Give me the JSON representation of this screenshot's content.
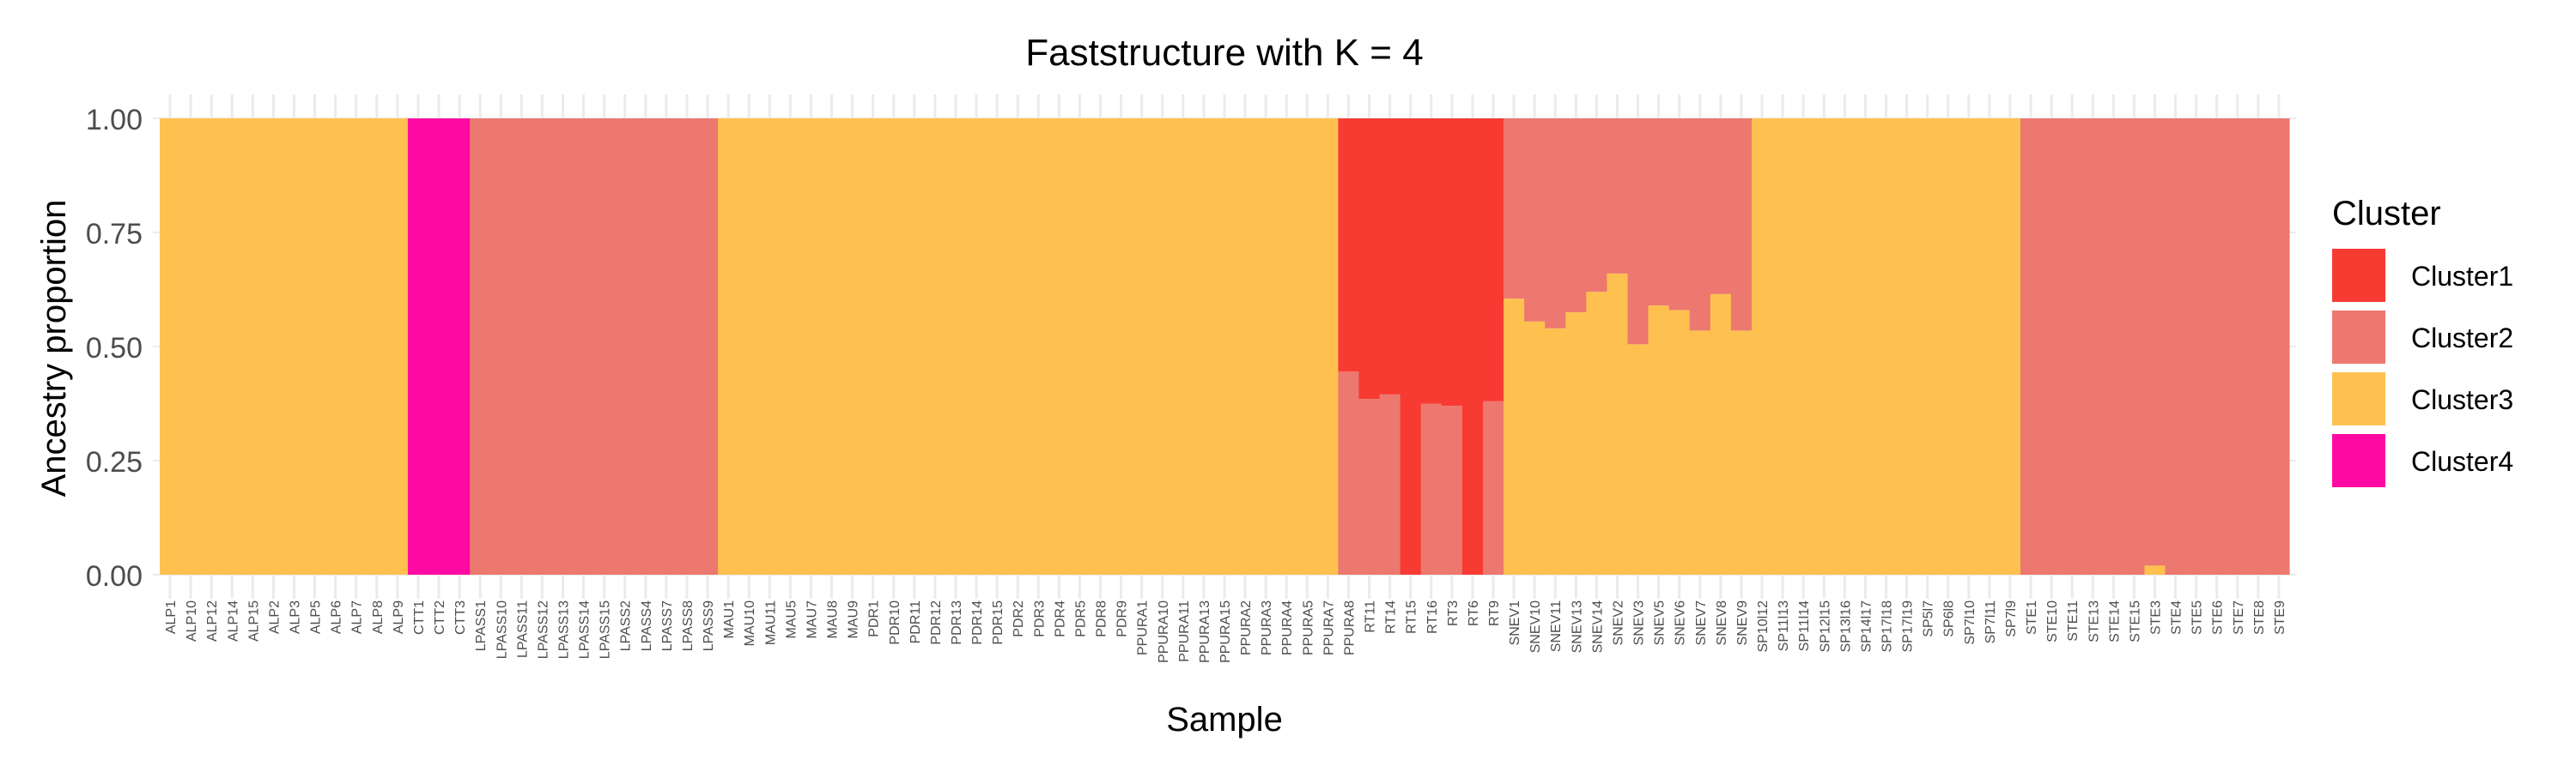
{
  "chart_data": {
    "type": "bar",
    "stacked": true,
    "title": "Faststructure with K = 4",
    "xlabel": "Sample",
    "ylabel": "Ancestry proportion",
    "ylim": [
      0,
      1
    ],
    "yticks": [
      "0.00",
      "0.25",
      "0.50",
      "0.75",
      "1.00"
    ],
    "grid": true,
    "legend": {
      "title": "Cluster",
      "position": "right"
    },
    "colors": {
      "Cluster1": "#f73b33",
      "Cluster2": "#ec786f",
      "Cluster3": "#fec150",
      "Cluster4": "#ff0aa3"
    },
    "categories": [
      "ALP1",
      "ALP10",
      "ALP12",
      "ALP14",
      "ALP15",
      "ALP2",
      "ALP3",
      "ALP5",
      "ALP6",
      "ALP7",
      "ALP8",
      "ALP9",
      "CTT1",
      "CTT2",
      "CTT3",
      "LPASS1",
      "LPASS10",
      "LPASS11",
      "LPASS12",
      "LPASS13",
      "LPASS14",
      "LPASS15",
      "LPASS2",
      "LPASS4",
      "LPASS7",
      "LPASS8",
      "LPASS9",
      "MAU1",
      "MAU10",
      "MAU11",
      "MAU5",
      "MAU7",
      "MAU8",
      "MAU9",
      "PDR1",
      "PDR10",
      "PDR11",
      "PDR12",
      "PDR13",
      "PDR14",
      "PDR15",
      "PDR2",
      "PDR3",
      "PDR4",
      "PDR5",
      "PDR8",
      "PDR9",
      "PPURA1",
      "PPURA10",
      "PPURA11",
      "PPURA13",
      "PPURA15",
      "PPURA2",
      "PPURA3",
      "PPURA4",
      "PPURA5",
      "PPURA7",
      "PPURA8",
      "RT11",
      "RT14",
      "RT15",
      "RT16",
      "RT3",
      "RT6",
      "RT9",
      "SNEV1",
      "SNEV10",
      "SNEV11",
      "SNEV13",
      "SNEV14",
      "SNEV2",
      "SNEV3",
      "SNEV5",
      "SNEV6",
      "SNEV7",
      "SNEV8",
      "SNEV9",
      "SP10l12",
      "SP11l13",
      "SP11l14",
      "SP12l15",
      "SP13l16",
      "SP14l17",
      "SP17l18",
      "SP17l19",
      "SP5l7",
      "SP6l8",
      "SP7l10",
      "SP7l11",
      "SP7l9",
      "STE1",
      "STE10",
      "STE11",
      "STE13",
      "STE14",
      "STE15",
      "STE3",
      "STE4",
      "STE5",
      "STE6",
      "STE7",
      "STE8",
      "STE9"
    ],
    "series": [
      {
        "name": "Cluster1",
        "values": [
          0,
          0,
          0,
          0,
          0,
          0,
          0,
          0,
          0,
          0,
          0,
          0,
          0,
          0,
          0,
          0,
          0,
          0,
          0,
          0,
          0,
          0,
          0,
          0,
          0,
          0,
          0,
          0,
          0,
          0,
          0,
          0,
          0,
          0,
          0,
          0,
          0,
          0,
          0,
          0,
          0,
          0,
          0,
          0,
          0,
          0,
          0,
          0,
          0,
          0,
          0,
          0,
          0,
          0,
          0,
          0,
          0,
          0.555,
          0.615,
          0.605,
          1,
          0.625,
          0.63,
          1,
          0.62,
          0,
          0,
          0,
          0,
          0,
          0,
          0,
          0,
          0,
          0,
          0,
          0,
          0,
          0,
          0,
          0,
          0,
          0,
          0,
          0,
          0,
          0,
          0,
          0,
          0,
          0,
          0,
          0,
          0,
          0,
          0,
          0,
          0,
          0,
          0,
          0,
          0,
          0
        ]
      },
      {
        "name": "Cluster2",
        "values": [
          0,
          0,
          0,
          0,
          0,
          0,
          0,
          0,
          0,
          0,
          0,
          0,
          0,
          0,
          0,
          1,
          1,
          1,
          1,
          1,
          1,
          1,
          1,
          1,
          1,
          1,
          1,
          0,
          0,
          0,
          0,
          0,
          0,
          0,
          0,
          0,
          0,
          0,
          0,
          0,
          0,
          0,
          0,
          0,
          0,
          0,
          0,
          0,
          0,
          0,
          0,
          0,
          0,
          0,
          0,
          0,
          0,
          0.445,
          0.385,
          0.395,
          0,
          0.375,
          0.37,
          0,
          0.38,
          0.395,
          0.445,
          0.46,
          0.425,
          0.38,
          0.34,
          0.495,
          0.41,
          0.42,
          0.465,
          0.385,
          0.465,
          0,
          0,
          0,
          0,
          0,
          0,
          0,
          0,
          0,
          0,
          0,
          0,
          0,
          1,
          1,
          1,
          1,
          1,
          1,
          0.98,
          1,
          1,
          1,
          1,
          1,
          1
        ]
      },
      {
        "name": "Cluster3",
        "values": [
          1,
          1,
          1,
          1,
          1,
          1,
          1,
          1,
          1,
          1,
          1,
          1,
          0,
          0,
          0,
          0,
          0,
          0,
          0,
          0,
          0,
          0,
          0,
          0,
          0,
          0,
          0,
          1,
          1,
          1,
          1,
          1,
          1,
          1,
          1,
          1,
          1,
          1,
          1,
          1,
          1,
          1,
          1,
          1,
          1,
          1,
          1,
          1,
          1,
          1,
          1,
          1,
          1,
          1,
          1,
          1,
          1,
          0,
          0,
          0,
          0,
          0,
          0,
          0,
          0,
          0.605,
          0.555,
          0.54,
          0.575,
          0.62,
          0.66,
          0.505,
          0.59,
          0.58,
          0.535,
          0.615,
          0.535,
          1,
          1,
          1,
          1,
          1,
          1,
          1,
          1,
          1,
          1,
          1,
          1,
          1,
          0,
          0,
          0,
          0,
          0,
          0,
          0.02,
          0,
          0,
          0,
          0,
          0,
          0
        ]
      },
      {
        "name": "Cluster4",
        "values": [
          0,
          0,
          0,
          0,
          0,
          0,
          0,
          0,
          0,
          0,
          0,
          0,
          1,
          1,
          1,
          0,
          0,
          0,
          0,
          0,
          0,
          0,
          0,
          0,
          0,
          0,
          0,
          0,
          0,
          0,
          0,
          0,
          0,
          0,
          0,
          0,
          0,
          0,
          0,
          0,
          0,
          0,
          0,
          0,
          0,
          0,
          0,
          0,
          0,
          0,
          0,
          0,
          0,
          0,
          0,
          0,
          0,
          0,
          0,
          0,
          0,
          0,
          0,
          0,
          0,
          0,
          0,
          0,
          0,
          0,
          0,
          0,
          0,
          0,
          0,
          0,
          0,
          0,
          0,
          0,
          0,
          0,
          0,
          0,
          0,
          0,
          0,
          0,
          0,
          0,
          0,
          0,
          0,
          0,
          0,
          0,
          0,
          0,
          0,
          0,
          0,
          0,
          0
        ]
      }
    ]
  }
}
